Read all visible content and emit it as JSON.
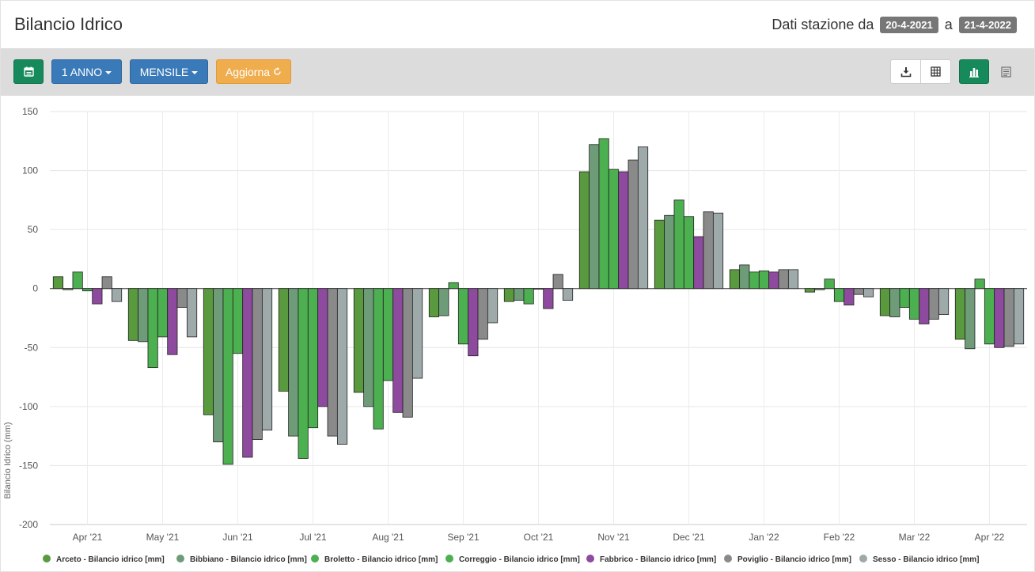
{
  "header": {
    "title": "Bilancio Idrico",
    "range_label": "Dati stazione da",
    "range_from": "20-4-2021",
    "range_sep": "a",
    "range_to": "21-4-2022"
  },
  "toolbar": {
    "calendar_icon": "calendar-icon",
    "period_label": "1 ANNO",
    "aggregation_label": "MENSILE",
    "update_label": "Aggiorna",
    "refresh_icon": "refresh-icon",
    "download_icon": "download-icon",
    "table_icon": "table-icon",
    "bar_chart_icon": "bar-chart-icon",
    "list_icon": "list-icon",
    "active_view_color": "#178a5c"
  },
  "chart_data": {
    "type": "bar",
    "ylabel": "Bilancio Idrico (mm)",
    "ylim": [
      -200,
      150
    ],
    "yticks": [
      150,
      100,
      50,
      0,
      -50,
      -100,
      -150,
      -200
    ],
    "grid": true,
    "legend_position": "bottom",
    "categories": [
      "Apr '21",
      "May '21",
      "Jun '21",
      "Jul '21",
      "Aug '21",
      "Sep '21",
      "Oct '21",
      "Nov '21",
      "Dec '21",
      "Jan '22",
      "Feb '22",
      "Mar '22",
      "Apr '22"
    ],
    "series": [
      {
        "name": "Arceto - Bilancio idrico [mm]",
        "color": "#5a9a3e",
        "values": [
          10,
          -44,
          -107,
          -87,
          -88,
          -24,
          -11,
          99,
          58,
          16,
          -3,
          -23,
          -43
        ]
      },
      {
        "name": "Bibbiano - Bilancio idrico [mm]",
        "color": "#6e9c78",
        "values": [
          -1,
          -45,
          -130,
          -125,
          -100,
          -23,
          -10,
          122,
          62,
          20,
          -1,
          -24,
          -51
        ]
      },
      {
        "name": "Broletto - Bilancio idrico [mm]",
        "color": "#4caf50",
        "values": [
          14,
          -67,
          -149,
          -144,
          -119,
          5,
          -13,
          127,
          75,
          14,
          8,
          -16,
          8
        ]
      },
      {
        "name": "Correggio - Bilancio idrico [mm]",
        "color": "#4caf50",
        "values": [
          -2,
          -41,
          -55,
          -118,
          -78,
          -47,
          0,
          101,
          61,
          15,
          -11,
          -26,
          -47
        ]
      },
      {
        "name": "Fabbrico - Bilancio idrico [mm]",
        "color": "#8e4a9e",
        "values": [
          -13,
          -56,
          -143,
          -100,
          -105,
          -57,
          -17,
          99,
          44,
          14,
          -14,
          -30,
          -50
        ]
      },
      {
        "name": "Poviglio - Bilancio idrico [mm]",
        "color": "#8a8a8a",
        "values": [
          10,
          -16,
          -128,
          -125,
          -109,
          -43,
          12,
          109,
          65,
          16,
          -5,
          -26,
          -49
        ]
      },
      {
        "name": "Sesso - Bilancio idrico [mm]",
        "color": "#9eaaaa",
        "values": [
          -11,
          -41,
          -120,
          -132,
          -76,
          -29,
          -10,
          120,
          64,
          16,
          -7,
          -22,
          -47
        ]
      }
    ]
  }
}
